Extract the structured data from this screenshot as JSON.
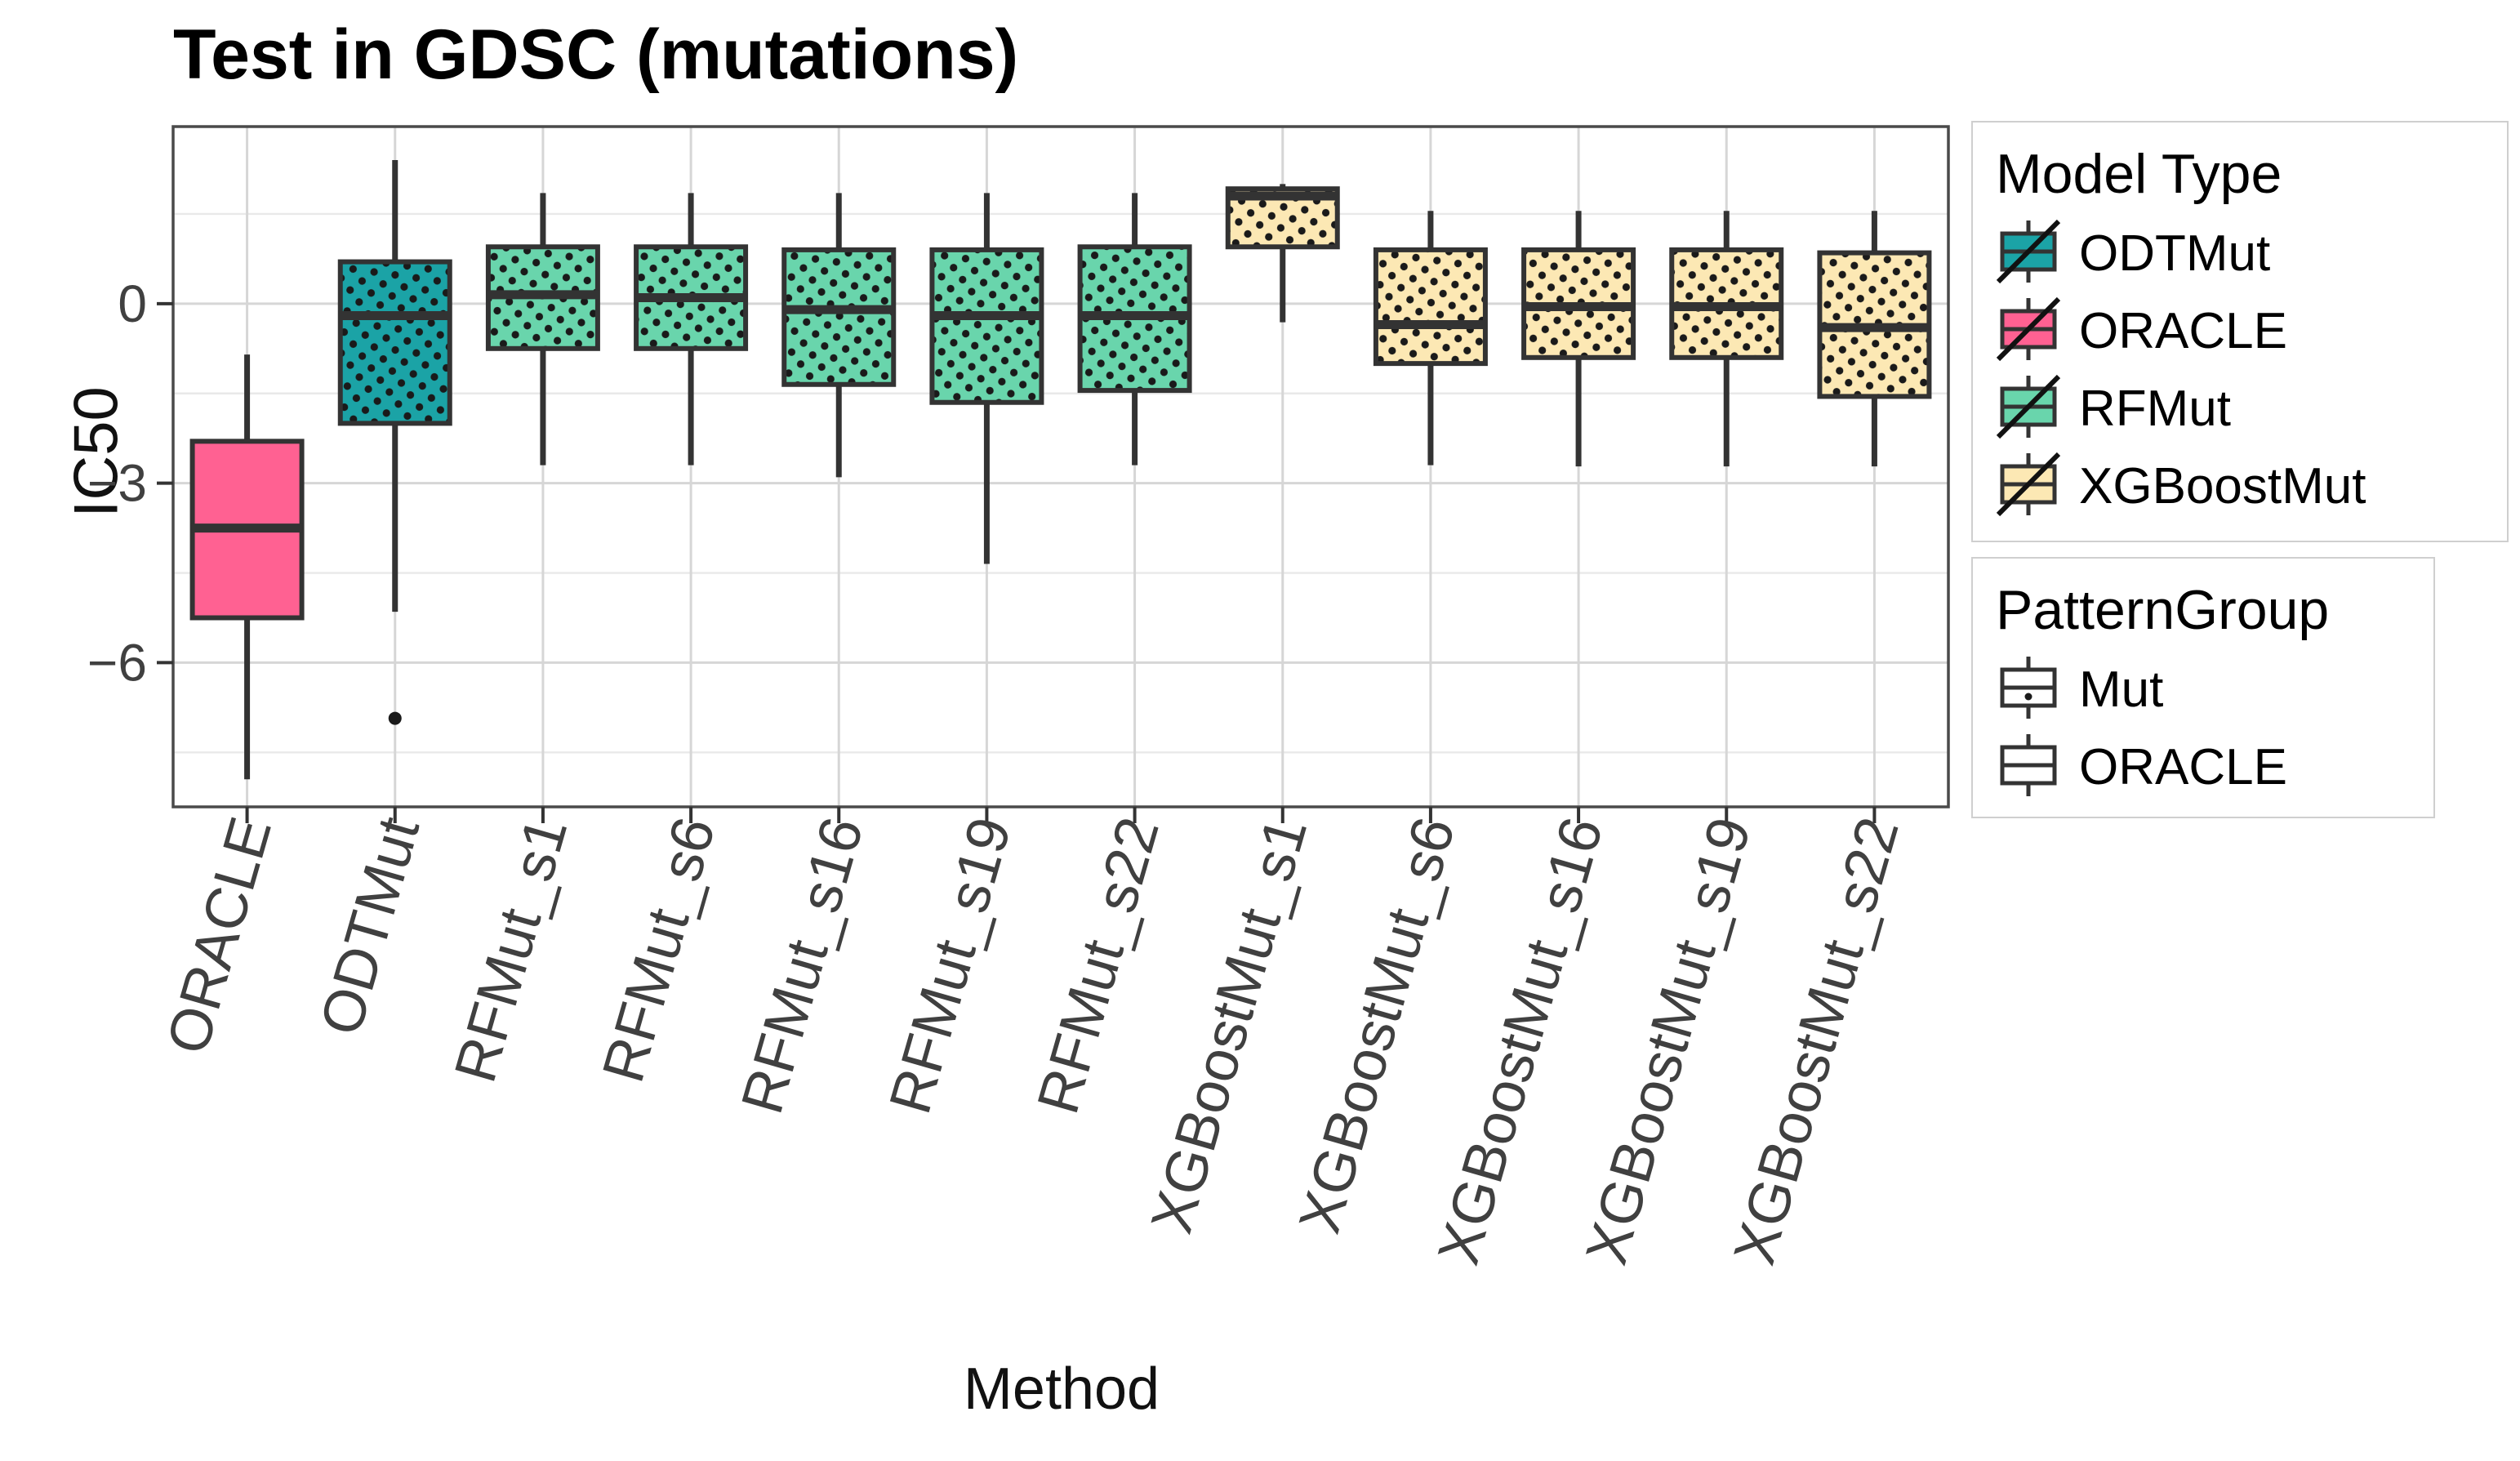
{
  "page_title": "Test in GDSC (mutations)",
  "chart_data": {
    "type": "boxplot",
    "title": "Test in GDSC (mutations)",
    "xlabel": "Method",
    "ylabel": "IC50",
    "ylim": [
      2.96,
      -8.41
    ],
    "y_major_ticks": [
      0,
      -3,
      -6
    ],
    "y_major_tick_labels": [
      "0",
      "−3",
      "−6"
    ],
    "y_minor_gridlines": [
      1.5,
      -1.5,
      -4.5,
      -7.5
    ],
    "grid": "on",
    "legend_position": "right",
    "categories": [
      "ORACLE",
      "ODTMut",
      "RFMut_s1",
      "RFMut_s6",
      "RFMut_s16",
      "RFMut_s19",
      "RFMut_s22",
      "XGBoostMut_s1",
      "XGBoostMut_s6",
      "XGBoostMut_s16",
      "XGBoostMut_s19",
      "XGBoostMut_s22"
    ],
    "series": [
      {
        "name": "ORACLE",
        "model_type": "ORACLE",
        "pattern_group": "ORACLE",
        "dotted": false,
        "whisker_low": -7.95,
        "q1": -5.25,
        "median": -3.75,
        "q3": -2.3,
        "whisker_high": -0.85,
        "outliers": []
      },
      {
        "name": "ODTMut",
        "model_type": "ODTMut",
        "pattern_group": "Mut",
        "dotted": true,
        "whisker_low": -5.15,
        "q1": -2.0,
        "median": -0.2,
        "q3": 0.7,
        "whisker_high": 2.4,
        "outliers": [
          -6.93
        ]
      },
      {
        "name": "RFMut_s1",
        "model_type": "RFMut",
        "pattern_group": "Mut",
        "dotted": true,
        "whisker_low": -2.7,
        "q1": -0.75,
        "median": 0.15,
        "q3": 0.95,
        "whisker_high": 1.85,
        "outliers": []
      },
      {
        "name": "RFMut_s6",
        "model_type": "RFMut",
        "pattern_group": "Mut",
        "dotted": true,
        "whisker_low": -2.7,
        "q1": -0.75,
        "median": 0.1,
        "q3": 0.95,
        "whisker_high": 1.85,
        "outliers": []
      },
      {
        "name": "RFMut_s16",
        "model_type": "RFMut",
        "pattern_group": "Mut",
        "dotted": true,
        "whisker_low": -2.9,
        "q1": -1.35,
        "median": -0.1,
        "q3": 0.9,
        "whisker_high": 1.85,
        "outliers": []
      },
      {
        "name": "RFMut_s19",
        "model_type": "RFMut",
        "pattern_group": "Mut",
        "dotted": true,
        "whisker_low": -4.35,
        "q1": -1.65,
        "median": -0.2,
        "q3": 0.9,
        "whisker_high": 1.85,
        "outliers": []
      },
      {
        "name": "RFMut_s22",
        "model_type": "RFMut",
        "pattern_group": "Mut",
        "dotted": true,
        "whisker_low": -2.7,
        "q1": -1.45,
        "median": -0.2,
        "q3": 0.95,
        "whisker_high": 1.85,
        "outliers": []
      },
      {
        "name": "XGBoostMut_s1",
        "model_type": "XGBoostMut",
        "pattern_group": "Mut",
        "dotted": true,
        "whisker_low": -0.31,
        "q1": 0.95,
        "median": 1.8,
        "q3": 1.92,
        "whisker_high": 2.0,
        "outliers": []
      },
      {
        "name": "XGBoostMut_s6",
        "model_type": "XGBoostMut",
        "pattern_group": "Mut",
        "dotted": true,
        "whisker_low": -2.7,
        "q1": -1.0,
        "median": -0.35,
        "q3": 0.9,
        "whisker_high": 1.55,
        "outliers": []
      },
      {
        "name": "XGBoostMut_s16",
        "model_type": "XGBoostMut",
        "pattern_group": "Mut",
        "dotted": true,
        "whisker_low": -2.72,
        "q1": -0.9,
        "median": -0.05,
        "q3": 0.9,
        "whisker_high": 1.55,
        "outliers": []
      },
      {
        "name": "XGBoostMut_s19",
        "model_type": "XGBoostMut",
        "pattern_group": "Mut",
        "dotted": true,
        "whisker_low": -2.72,
        "q1": -0.9,
        "median": -0.05,
        "q3": 0.9,
        "whisker_high": 1.55,
        "outliers": []
      },
      {
        "name": "XGBoostMut_s22",
        "model_type": "XGBoostMut",
        "pattern_group": "Mut",
        "dotted": true,
        "whisker_low": -2.72,
        "q1": -1.55,
        "median": -0.4,
        "q3": 0.85,
        "whisker_high": 1.55,
        "outliers": []
      }
    ],
    "colors": {
      "ODTMut": "#1ba3a6",
      "ORACLE": "#ff6192",
      "RFMut": "#69d5ac",
      "XGBoostMut": "#fce8b4",
      "box_stroke": "#333333",
      "dot": "#1a1a1a",
      "grid_major": "#d6d6d6",
      "grid_minor": "#e9e9e9",
      "panel_border": "#4a4a4a",
      "tick_text": "#404040"
    }
  },
  "legend_model_type": {
    "title": "Model Type",
    "entries": [
      {
        "label": "ODTMut",
        "color": "#1ba3a6"
      },
      {
        "label": "ORACLE",
        "color": "#ff6192"
      },
      {
        "label": "RFMut",
        "color": "#69d5ac"
      },
      {
        "label": "XGBoostMut",
        "color": "#fce8b4"
      }
    ]
  },
  "legend_pattern_group": {
    "title": "PatternGroup",
    "entries": [
      {
        "label": "Mut",
        "dotted": true
      },
      {
        "label": "ORACLE",
        "dotted": false
      }
    ]
  }
}
